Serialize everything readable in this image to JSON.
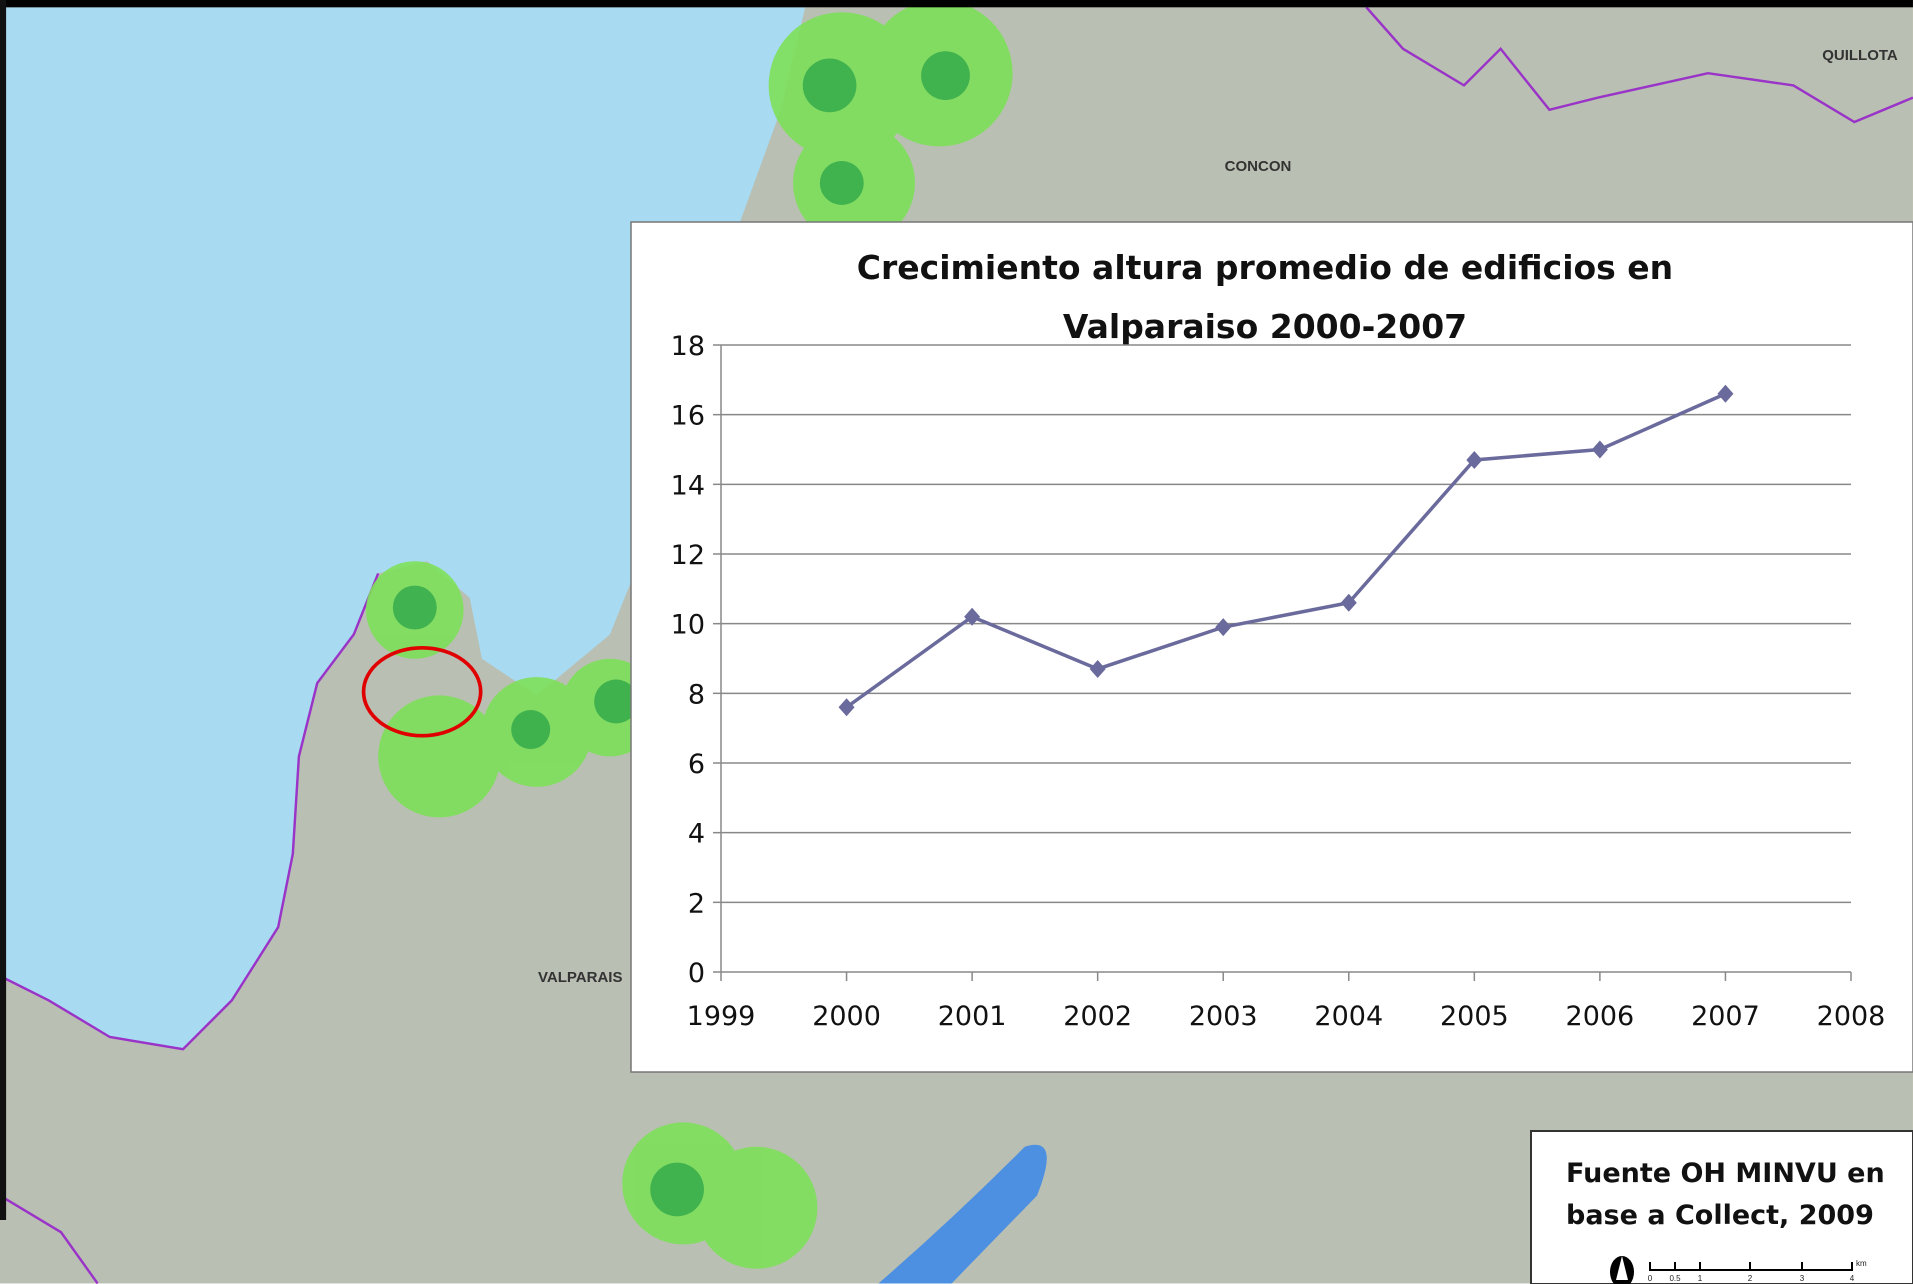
{
  "chart_data": {
    "type": "line",
    "title": "Crecimiento altura promedio de edificios en Valparaiso 2000-2007",
    "x": [
      2000,
      2001,
      2002,
      2003,
      2004,
      2005,
      2006,
      2007
    ],
    "values": [
      7.6,
      10.2,
      8.7,
      9.9,
      10.6,
      14.7,
      15.0,
      16.6
    ],
    "color": "#6a6a9c",
    "xlim": [
      1999,
      2008
    ],
    "xticks": [
      1999,
      2000,
      2001,
      2002,
      2003,
      2004,
      2005,
      2006,
      2007,
      2008
    ],
    "ylim": [
      0,
      18
    ],
    "yticks": [
      0,
      2,
      4,
      6,
      8,
      10,
      12,
      14,
      16,
      18
    ],
    "grid": true
  },
  "map_labels": [
    "QUILLOTA",
    "CONCON",
    "VALPARAIS"
  ],
  "source": [
    "Fuente OH MINVU en",
    "base a Collect, 2009"
  ],
  "scale_bar": {
    "labels": [
      "0",
      "0.5",
      "1",
      "2",
      "3",
      "4"
    ],
    "unit": "km"
  }
}
